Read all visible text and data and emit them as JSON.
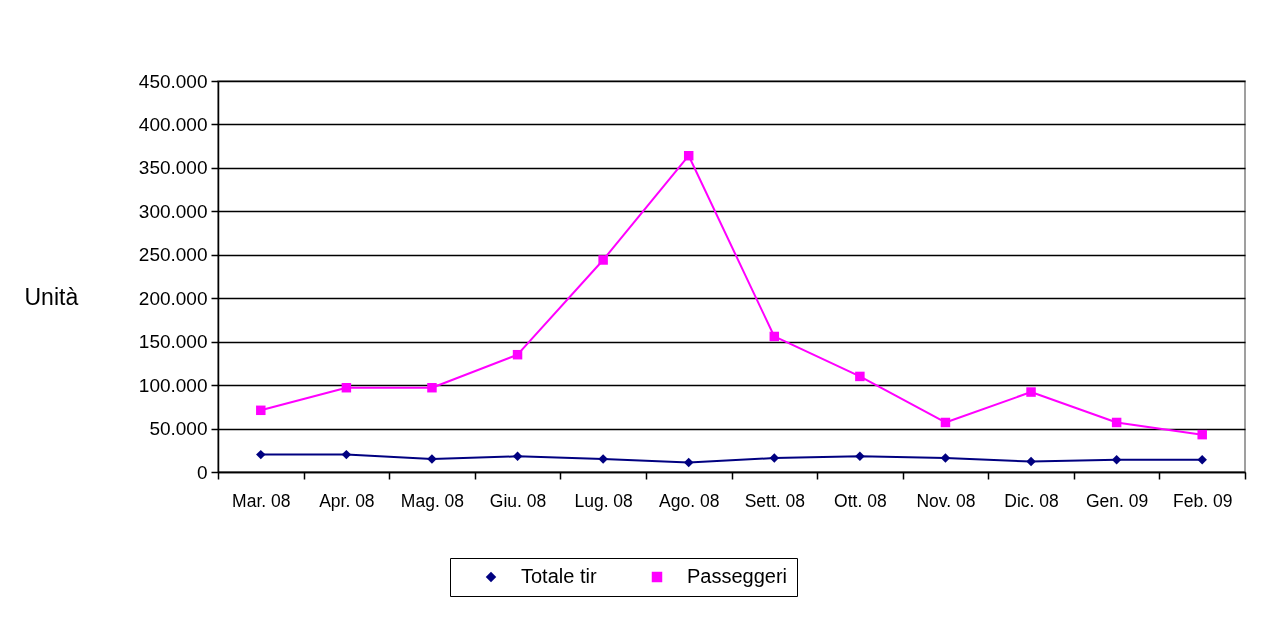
{
  "chart_data": {
    "type": "line",
    "ylabel": "Unità",
    "categories": [
      "Mar. 08",
      "Apr. 08",
      "Mag. 08",
      "Giu. 08",
      "Lug. 08",
      "Ago. 08",
      "Sett. 08",
      "Ott. 08",
      "Nov. 08",
      "Dic. 08",
      "Gen. 09",
      "Feb. 09"
    ],
    "series": [
      {
        "name": "Totale tir",
        "color": "#000080",
        "marker": "diamond",
        "values": [
          20000,
          20000,
          15000,
          18000,
          15000,
          11000,
          16000,
          18000,
          16000,
          12000,
          14000,
          14000
        ]
      },
      {
        "name": "Passeggeri",
        "color": "#ff00ff",
        "marker": "square",
        "values": [
          71000,
          97000,
          97000,
          135000,
          244000,
          364000,
          156000,
          110000,
          57000,
          92000,
          57000,
          43000
        ]
      }
    ],
    "ylim": [
      0,
      450000
    ],
    "yticks": [
      0,
      {
        "value": 50000,
        "label": "50.000"
      },
      {
        "value": 100000,
        "label": "100.000"
      },
      {
        "value": 150000,
        "label": "150.000"
      },
      {
        "value": 200000,
        "label": "200.000"
      },
      {
        "value": 250000,
        "label": "250.000"
      },
      {
        "value": 300000,
        "label": "300.000"
      },
      {
        "value": 350000,
        "label": "350.000"
      },
      {
        "value": 400000,
        "label": "400.000"
      },
      {
        "value": 450000,
        "label": "450.000"
      }
    ],
    "grid": "y",
    "legend": "bottom",
    "line_style": "solid"
  }
}
